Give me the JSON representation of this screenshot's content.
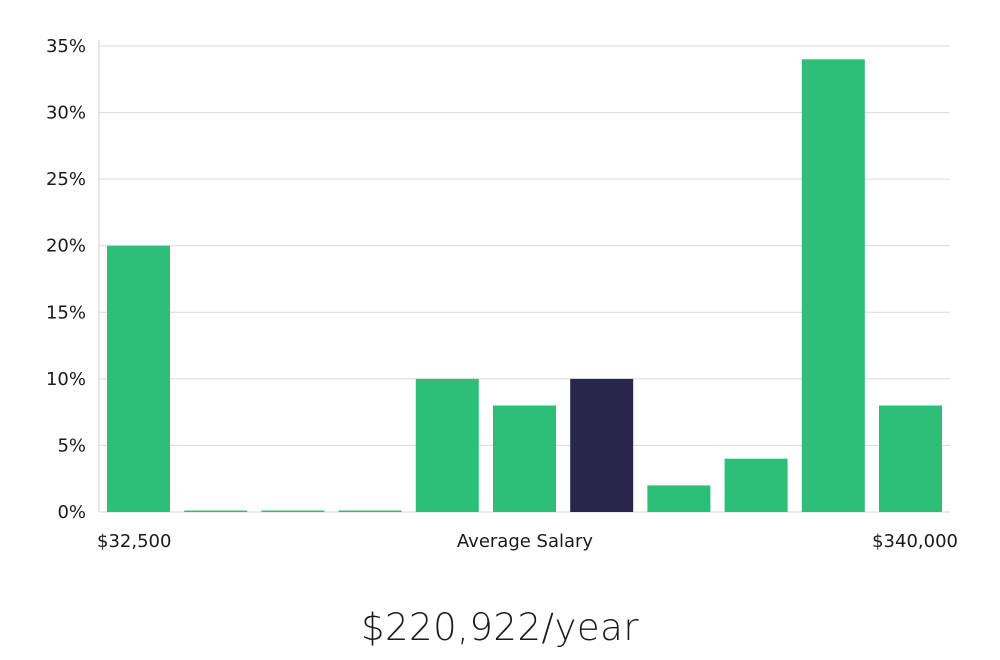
{
  "chart_data": {
    "type": "bar",
    "title": "",
    "ylabel": "",
    "xlabel": "Average Salary",
    "x_min_label": "$32,500",
    "x_max_label": "$340,000",
    "ylim": [
      0,
      35
    ],
    "y_ticks": [
      "0%",
      "5%",
      "10%",
      "15%",
      "20%",
      "25%",
      "30%",
      "35%"
    ],
    "y_tick_values": [
      0,
      5,
      10,
      15,
      20,
      25,
      30,
      35
    ],
    "grid": true,
    "values": [
      20,
      0,
      0,
      0,
      10,
      8,
      10,
      2,
      4,
      34,
      8
    ],
    "highlight_index": 6,
    "colors": {
      "bar": "#2bbf77",
      "highlight": "#28264a",
      "grid": "#d9d9d9",
      "axis": "#cccccc"
    }
  },
  "summary": {
    "average_salary": "$220,922/year"
  }
}
